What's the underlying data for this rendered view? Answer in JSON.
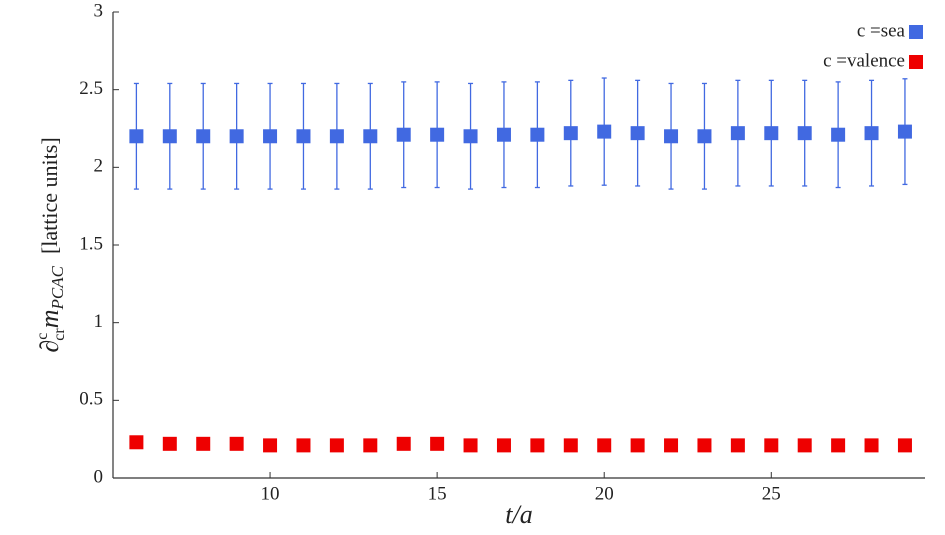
{
  "chart_data": {
    "type": "scatter",
    "xlabel": "t/a",
    "ylabel": {
      "symbol": "∂",
      "sup": "c",
      "sub": "cr",
      "m": "m",
      "msub": "PCAC",
      "unit": "[lattice units]"
    },
    "x": [
      6,
      7,
      8,
      9,
      10,
      11,
      12,
      13,
      14,
      15,
      16,
      17,
      18,
      19,
      20,
      21,
      22,
      23,
      24,
      25,
      26,
      27,
      28,
      29
    ],
    "series": [
      {
        "name": "c =sea",
        "color": "#4169e1",
        "values": [
          2.2,
          2.2,
          2.2,
          2.2,
          2.2,
          2.2,
          2.2,
          2.2,
          2.21,
          2.21,
          2.2,
          2.21,
          2.21,
          2.22,
          2.23,
          2.22,
          2.2,
          2.2,
          2.22,
          2.22,
          2.22,
          2.21,
          2.22,
          2.23
        ],
        "errors": [
          0.34,
          0.34,
          0.34,
          0.34,
          0.34,
          0.34,
          0.34,
          0.34,
          0.34,
          0.34,
          0.34,
          0.34,
          0.34,
          0.34,
          0.345,
          0.34,
          0.34,
          0.34,
          0.34,
          0.34,
          0.34,
          0.34,
          0.34,
          0.34
        ]
      },
      {
        "name": "c =valence",
        "color": "#ee0000",
        "values": [
          0.23,
          0.22,
          0.22,
          0.22,
          0.21,
          0.21,
          0.21,
          0.21,
          0.22,
          0.22,
          0.21,
          0.21,
          0.21,
          0.21,
          0.21,
          0.21,
          0.21,
          0.21,
          0.21,
          0.21,
          0.21,
          0.21,
          0.21,
          0.21
        ]
      }
    ],
    "xlim": [
      5.3,
      29.6
    ],
    "xticks": [
      10,
      15,
      20,
      25
    ],
    "ylim": [
      0,
      3
    ],
    "yticks": [
      0,
      0.5,
      1,
      1.5,
      2,
      2.5,
      3
    ],
    "grid": false,
    "legend": "upper right"
  }
}
